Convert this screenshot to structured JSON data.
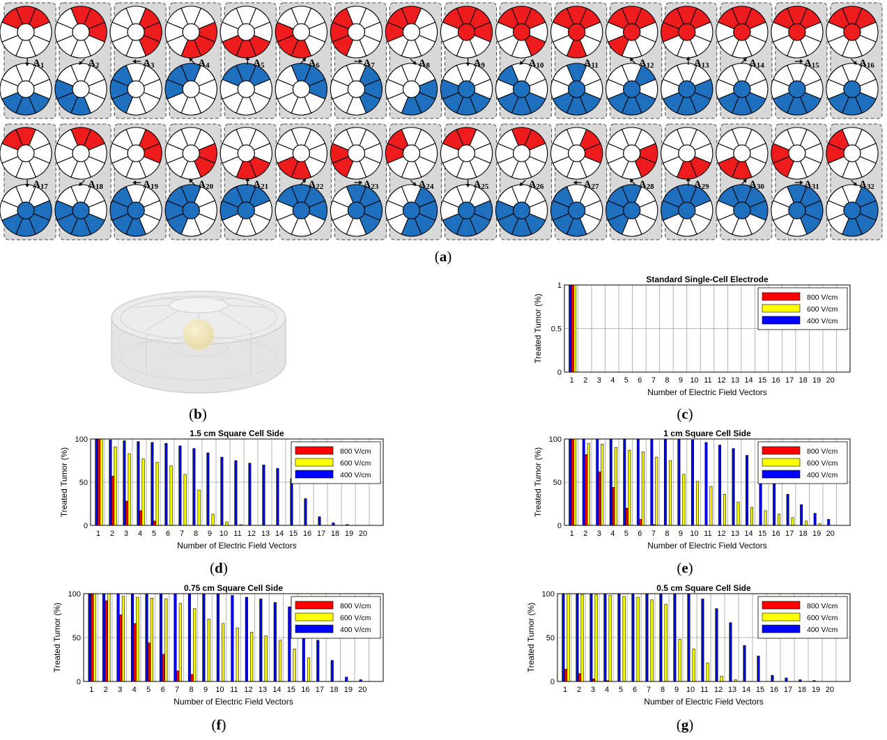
{
  "panel_a": {
    "cells_row1": [
      "A1",
      "A2",
      "A3",
      "A4",
      "A5",
      "A6",
      "A7",
      "A8",
      "A9",
      "A10",
      "A11",
      "A12",
      "A13",
      "A14",
      "A15",
      "A16"
    ],
    "cells_row2": [
      "A17",
      "A18",
      "A19",
      "A20",
      "A21",
      "A22",
      "A23",
      "A24",
      "A25",
      "A26",
      "A27",
      "A28",
      "A29",
      "A30",
      "A31",
      "A32"
    ],
    "colors": {
      "positive": "#ee1c1c",
      "negative": "#1f6fbf",
      "cell_bg": "#d8d8d8"
    }
  },
  "labels": {
    "a": "a",
    "b": "b",
    "c": "c",
    "d": "d",
    "e": "e",
    "f": "f",
    "g": "g",
    "paren_open": "(",
    "paren_close": ")"
  },
  "legend_colors": {
    "800 V/cm": "#ff0000",
    "600 V/cm": "#ffff00",
    "400 V/cm": "#0000ff"
  },
  "chart_data": [
    {
      "id": "c",
      "type": "bar",
      "title": "Standard Single-Cell Electrode",
      "xlabel": "Number of Electric Field Vectors",
      "ylabel": "Treated Tumor (%)",
      "categories": [
        "1",
        "2",
        "3",
        "4",
        "5",
        "6",
        "7",
        "8",
        "9",
        "10",
        "11",
        "12",
        "13",
        "14",
        "15",
        "16",
        "17",
        "18",
        "19",
        "20"
      ],
      "ylim": [
        0,
        1
      ],
      "yticks": [
        "0",
        "0.5",
        "1"
      ],
      "grid": true,
      "legend_position": "top-right",
      "series": [
        {
          "name": "800 V/cm",
          "values": [
            1,
            0,
            0,
            0,
            0,
            0,
            0,
            0,
            0,
            0,
            0,
            0,
            0,
            0,
            0,
            0,
            0,
            0,
            0,
            0
          ]
        },
        {
          "name": "600 V/cm",
          "values": [
            1,
            0,
            0,
            0,
            0,
            0,
            0,
            0,
            0,
            0,
            0,
            0,
            0,
            0,
            0,
            0,
            0,
            0,
            0,
            0
          ]
        },
        {
          "name": "400 V/cm",
          "values": [
            1,
            0,
            0,
            0,
            0,
            0,
            0,
            0,
            0,
            0,
            0,
            0,
            0,
            0,
            0,
            0,
            0,
            0,
            0,
            0
          ]
        }
      ]
    },
    {
      "id": "d",
      "type": "bar",
      "title": "1.5 cm Square Cell Side",
      "xlabel": "Number of Electric Field Vectors",
      "ylabel": "Treated Tumor (%)",
      "categories": [
        "1",
        "2",
        "3",
        "4",
        "5",
        "6",
        "7",
        "8",
        "9",
        "10",
        "11",
        "12",
        "13",
        "14",
        "15",
        "16",
        "17",
        "18",
        "19",
        "20"
      ],
      "ylim": [
        0,
        100
      ],
      "yticks": [
        "0",
        "50",
        "100"
      ],
      "grid": true,
      "legend_position": "top-right",
      "series": [
        {
          "name": "800 V/cm",
          "values": [
            100,
            57,
            28,
            17,
            5,
            0,
            0,
            0,
            0,
            0,
            0,
            0,
            0,
            0,
            0,
            0,
            0,
            0,
            0,
            0
          ]
        },
        {
          "name": "600 V/cm",
          "values": [
            100,
            91,
            83,
            77,
            73,
            69,
            59,
            41,
            13,
            4,
            1,
            0,
            0,
            0,
            0,
            0,
            0,
            0,
            0,
            0
          ]
        },
        {
          "name": "400 V/cm",
          "values": [
            100,
            99,
            98,
            97,
            96,
            95,
            92,
            89,
            84,
            79,
            75,
            72,
            70,
            66,
            54,
            31,
            10,
            3,
            1,
            0
          ]
        }
      ]
    },
    {
      "id": "e",
      "type": "bar",
      "title": "1 cm Square Cell Side",
      "xlabel": "Number of Electric Field Vectors",
      "ylabel": "Treated Tumor (%)",
      "categories": [
        "1",
        "2",
        "3",
        "4",
        "5",
        "6",
        "7",
        "8",
        "9",
        "10",
        "11",
        "12",
        "13",
        "14",
        "15",
        "16",
        "17",
        "18",
        "19",
        "20"
      ],
      "ylim": [
        0,
        100
      ],
      "yticks": [
        "0",
        "50",
        "100"
      ],
      "grid": true,
      "legend_position": "top-right",
      "series": [
        {
          "name": "800 V/cm",
          "values": [
            100,
            82,
            62,
            44,
            20,
            7,
            1,
            0,
            0,
            0,
            0,
            0,
            0,
            0,
            0,
            0,
            0,
            0,
            0,
            0
          ]
        },
        {
          "name": "600 V/cm",
          "values": [
            100,
            95,
            94,
            90,
            87,
            85,
            79,
            75,
            59,
            51,
            45,
            36,
            27,
            21,
            17,
            13,
            9,
            5,
            2,
            0
          ]
        },
        {
          "name": "400 V/cm",
          "values": [
            100,
            100,
            100,
            100,
            100,
            100,
            100,
            100,
            100,
            99,
            96,
            93,
            89,
            81,
            72,
            57,
            36,
            24,
            14,
            7
          ]
        }
      ]
    },
    {
      "id": "f",
      "type": "bar",
      "title": "0.75 cm Square Cell Side",
      "xlabel": "Number of Electric Field Vectors",
      "ylabel": "Treated Tumor (%)",
      "categories": [
        "1",
        "2",
        "3",
        "4",
        "5",
        "6",
        "7",
        "8",
        "9",
        "10",
        "11",
        "12",
        "13",
        "14",
        "15",
        "16",
        "17",
        "18",
        "19",
        "20"
      ],
      "ylim": [
        0,
        100
      ],
      "yticks": [
        "0",
        "50",
        "100"
      ],
      "grid": true,
      "legend_position": "top-right",
      "series": [
        {
          "name": "800 V/cm",
          "values": [
            100,
            92,
            76,
            66,
            44,
            31,
            12,
            8,
            0,
            0,
            0,
            0,
            0,
            0,
            0,
            0,
            0,
            0,
            0,
            0
          ]
        },
        {
          "name": "600 V/cm",
          "values": [
            100,
            100,
            97,
            96,
            95,
            94,
            89,
            83,
            71,
            66,
            61,
            56,
            52,
            47,
            37,
            27,
            0,
            0,
            0,
            0
          ]
        },
        {
          "name": "400 V/cm",
          "values": [
            100,
            100,
            100,
            100,
            100,
            100,
            100,
            100,
            100,
            100,
            98,
            96,
            94,
            90,
            85,
            57,
            47,
            24,
            5,
            2
          ]
        }
      ]
    },
    {
      "id": "g",
      "type": "bar",
      "title": "0.5 cm Square Cell Side",
      "xlabel": "Number of Electric Field Vectors",
      "ylabel": "Treated Tumor (%)",
      "categories": [
        "1",
        "2",
        "3",
        "4",
        "5",
        "6",
        "7",
        "8",
        "9",
        "10",
        "11",
        "12",
        "13",
        "14",
        "15",
        "16",
        "17",
        "18",
        "19",
        "20"
      ],
      "ylim": [
        0,
        100
      ],
      "yticks": [
        "0",
        "50",
        "100"
      ],
      "grid": true,
      "legend_position": "top-right",
      "series": [
        {
          "name": "800 V/cm",
          "values": [
            14,
            9,
            3,
            1,
            0,
            0,
            0,
            0,
            0,
            0,
            0,
            0,
            0,
            0,
            0,
            0,
            0,
            0,
            0,
            0
          ]
        },
        {
          "name": "600 V/cm",
          "values": [
            100,
            99,
            99,
            98,
            97,
            96,
            93,
            88,
            48,
            37,
            21,
            6,
            2,
            0,
            0,
            0,
            0,
            0,
            0,
            0
          ]
        },
        {
          "name": "400 V/cm",
          "values": [
            100,
            100,
            100,
            100,
            100,
            100,
            100,
            100,
            100,
            100,
            94,
            83,
            67,
            41,
            29,
            7,
            4,
            2,
            1,
            0
          ]
        }
      ]
    }
  ]
}
